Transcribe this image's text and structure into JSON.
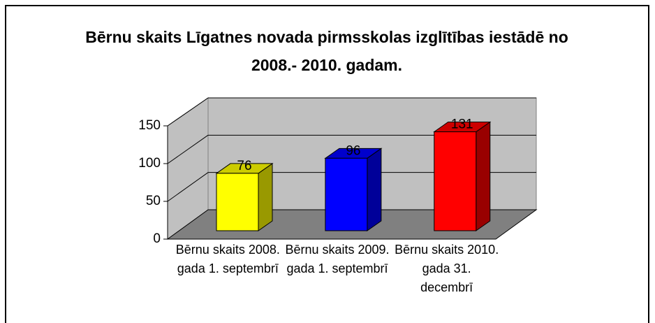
{
  "chart_data": {
    "type": "bar3d",
    "title": "Bērnu skaits Līgatnes novada pirmsskolas izglītības iestādē no 2008.- 2010. gadam.",
    "categories": [
      "Bērnu skaits 2008. gada 1. septembrī",
      "Bērnu skaits 2009. gada 1. septembrī",
      "Bērnu skaits 2010. gada 31. decembrī"
    ],
    "values": [
      76,
      96,
      131
    ],
    "colors": [
      "#ffff00",
      "#0000ff",
      "#ff0000"
    ],
    "ylim": [
      0,
      150
    ],
    "yticks": [
      0,
      50,
      100,
      150
    ],
    "grid": true
  }
}
